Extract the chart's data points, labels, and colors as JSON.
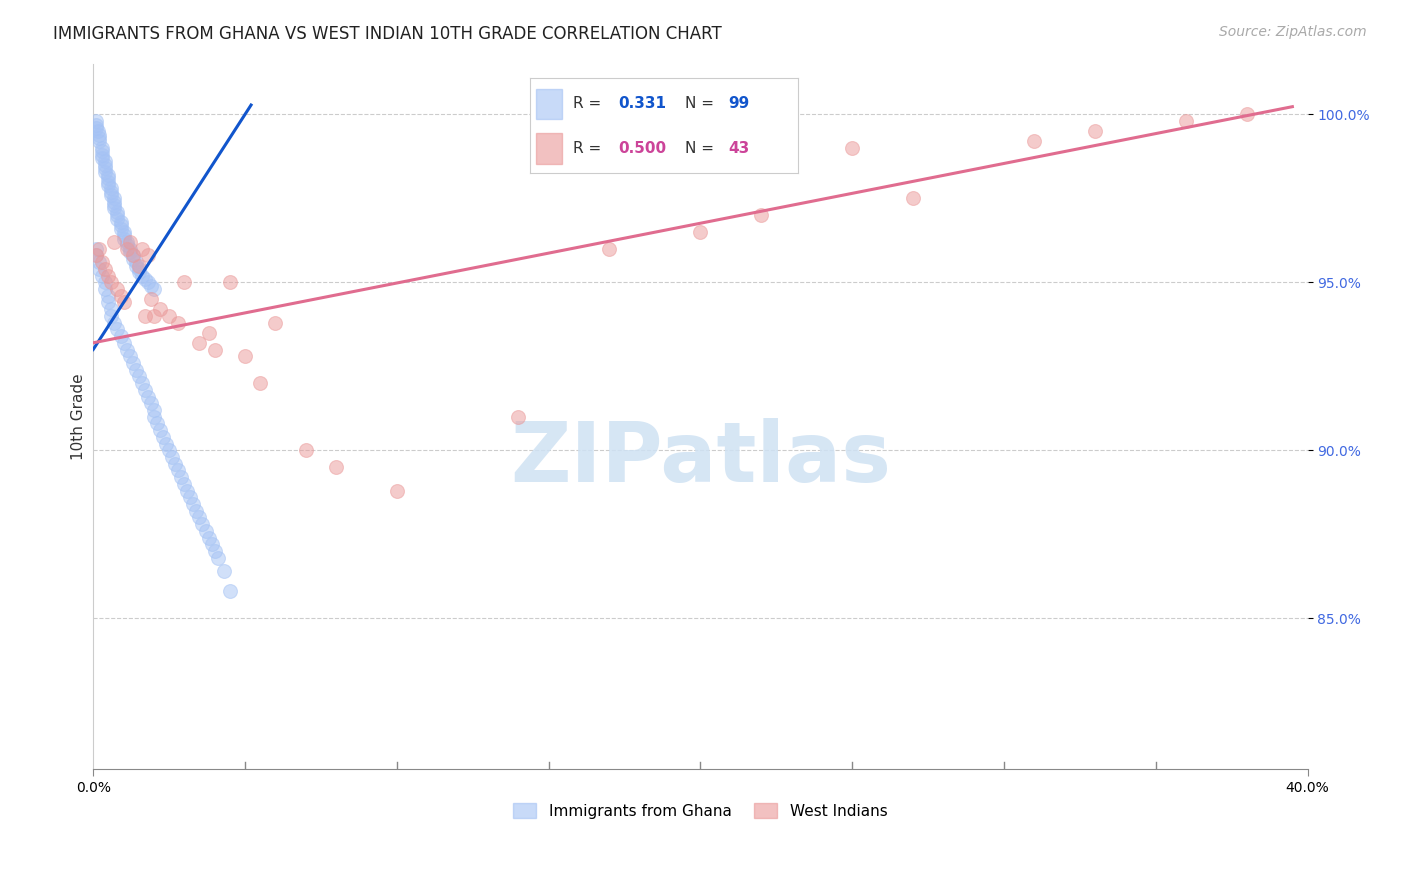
{
  "title": "IMMIGRANTS FROM GHANA VS WEST INDIAN 10TH GRADE CORRELATION CHART",
  "source": "Source: ZipAtlas.com",
  "ylabel": "10th Grade",
  "ytick_labels": [
    "100.0%",
    "95.0%",
    "90.0%",
    "85.0%"
  ],
  "ytick_values": [
    1.0,
    0.95,
    0.9,
    0.85
  ],
  "xlim": [
    0.0,
    0.4
  ],
  "ylim": [
    0.805,
    1.015
  ],
  "blue_color": "#a4c2f4",
  "pink_color": "#ea9999",
  "blue_line_color": "#1155cc",
  "pink_line_color": "#e06c8f",
  "marker_size": 100,
  "marker_alpha": 0.5,
  "watermark_text": "ZIPatlas",
  "watermark_color": "#cfe2f3",
  "background_color": "#ffffff",
  "grid_color": "#cccccc",
  "title_fontsize": 12,
  "source_fontsize": 10,
  "tick_fontsize": 10,
  "ylabel_fontsize": 11,
  "legend_r1_label": "R = ",
  "legend_r1_val": "0.331",
  "legend_r1_n_label": "N = ",
  "legend_r1_n_val": "99",
  "legend_r2_label": "R = ",
  "legend_r2_val": "0.500",
  "legend_r2_n_label": "N = ",
  "legend_r2_n_val": "43",
  "legend_val_color_blue": "#1155cc",
  "legend_val_color_pink": "#cc4499",
  "ghana_x": [
    0.0008,
    0.001,
    0.001,
    0.0015,
    0.002,
    0.002,
    0.002,
    0.003,
    0.003,
    0.003,
    0.003,
    0.004,
    0.004,
    0.004,
    0.004,
    0.005,
    0.005,
    0.005,
    0.005,
    0.006,
    0.006,
    0.006,
    0.007,
    0.007,
    0.007,
    0.007,
    0.008,
    0.008,
    0.008,
    0.009,
    0.009,
    0.009,
    0.01,
    0.01,
    0.01,
    0.011,
    0.011,
    0.012,
    0.012,
    0.013,
    0.013,
    0.014,
    0.014,
    0.015,
    0.015,
    0.016,
    0.017,
    0.018,
    0.019,
    0.02,
    0.001,
    0.001,
    0.002,
    0.002,
    0.003,
    0.004,
    0.004,
    0.005,
    0.005,
    0.006,
    0.006,
    0.007,
    0.008,
    0.009,
    0.01,
    0.011,
    0.012,
    0.013,
    0.014,
    0.015,
    0.016,
    0.017,
    0.018,
    0.019,
    0.02,
    0.02,
    0.021,
    0.022,
    0.023,
    0.024,
    0.025,
    0.026,
    0.027,
    0.028,
    0.029,
    0.03,
    0.031,
    0.032,
    0.033,
    0.034,
    0.035,
    0.036,
    0.037,
    0.038,
    0.039,
    0.04,
    0.041,
    0.043,
    0.045
  ],
  "ghana_y": [
    0.998,
    0.997,
    0.996,
    0.995,
    0.994,
    0.993,
    0.992,
    0.99,
    0.989,
    0.988,
    0.987,
    0.986,
    0.985,
    0.984,
    0.983,
    0.982,
    0.981,
    0.98,
    0.979,
    0.978,
    0.977,
    0.976,
    0.975,
    0.974,
    0.973,
    0.972,
    0.971,
    0.97,
    0.969,
    0.968,
    0.967,
    0.966,
    0.965,
    0.964,
    0.963,
    0.962,
    0.961,
    0.96,
    0.959,
    0.958,
    0.957,
    0.956,
    0.955,
    0.954,
    0.953,
    0.952,
    0.951,
    0.95,
    0.949,
    0.948,
    0.96,
    0.958,
    0.956,
    0.954,
    0.952,
    0.95,
    0.948,
    0.946,
    0.944,
    0.942,
    0.94,
    0.938,
    0.936,
    0.934,
    0.932,
    0.93,
    0.928,
    0.926,
    0.924,
    0.922,
    0.92,
    0.918,
    0.916,
    0.914,
    0.912,
    0.91,
    0.908,
    0.906,
    0.904,
    0.902,
    0.9,
    0.898,
    0.896,
    0.894,
    0.892,
    0.89,
    0.888,
    0.886,
    0.884,
    0.882,
    0.88,
    0.878,
    0.876,
    0.874,
    0.872,
    0.87,
    0.868,
    0.864,
    0.858
  ],
  "wi_x": [
    0.001,
    0.002,
    0.003,
    0.004,
    0.005,
    0.006,
    0.007,
    0.008,
    0.009,
    0.01,
    0.011,
    0.012,
    0.013,
    0.015,
    0.016,
    0.017,
    0.018,
    0.019,
    0.02,
    0.022,
    0.025,
    0.028,
    0.03,
    0.035,
    0.038,
    0.04,
    0.045,
    0.05,
    0.055,
    0.06,
    0.07,
    0.08,
    0.1,
    0.14,
    0.17,
    0.2,
    0.22,
    0.25,
    0.27,
    0.31,
    0.33,
    0.36,
    0.38
  ],
  "wi_y": [
    0.958,
    0.96,
    0.956,
    0.954,
    0.952,
    0.95,
    0.962,
    0.948,
    0.946,
    0.944,
    0.96,
    0.962,
    0.958,
    0.955,
    0.96,
    0.94,
    0.958,
    0.945,
    0.94,
    0.942,
    0.94,
    0.938,
    0.95,
    0.932,
    0.935,
    0.93,
    0.95,
    0.928,
    0.92,
    0.938,
    0.9,
    0.895,
    0.888,
    0.91,
    0.96,
    0.965,
    0.97,
    0.99,
    0.975,
    0.992,
    0.995,
    0.998,
    1.0
  ],
  "blue_line_x": [
    0.0,
    0.052
  ],
  "blue_line_y_intercept": 0.93,
  "blue_line_slope": 1.4,
  "pink_line_x": [
    0.0,
    0.395
  ],
  "pink_line_y_intercept": 0.932,
  "pink_line_slope": 0.178
}
